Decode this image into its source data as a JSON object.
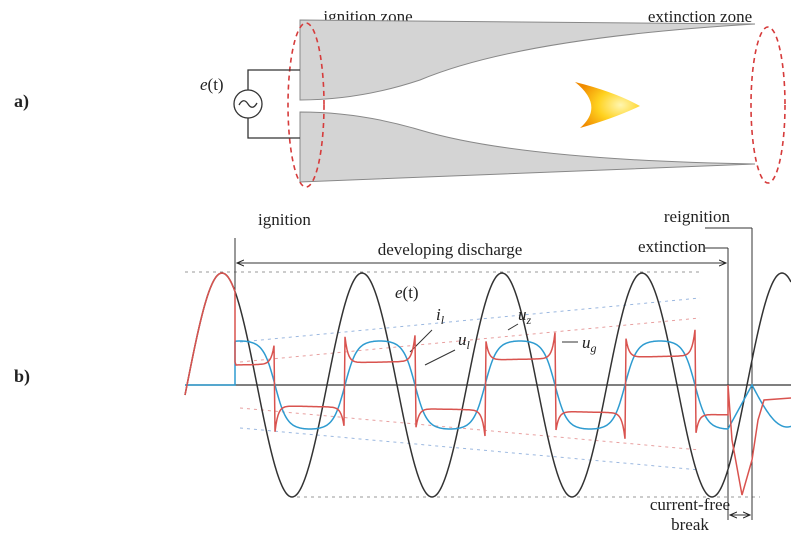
{
  "labels": {
    "a": "a)",
    "b": "b)"
  },
  "part_a": {
    "ignition_zone": "ignition zone",
    "extinction_zone": "extinction zone",
    "source": {
      "symbol": "e",
      "argument": "(t)"
    }
  },
  "part_b": {
    "ignition": "ignition",
    "developing_discharge": "developing discharge",
    "reignition": "reignition",
    "extinction": "extinction",
    "current_free_break": [
      "current-free",
      "break"
    ],
    "source": {
      "symbol": "e",
      "argument": "(t)"
    },
    "current": {
      "symbol": "i",
      "subscript": "l"
    },
    "arc_voltage": {
      "symbol": "u",
      "subscript": "l"
    },
    "ignition_voltage": {
      "symbol": "u",
      "subscript": "z"
    },
    "gap_voltage": {
      "symbol": "u",
      "subscript": "g"
    }
  }
}
